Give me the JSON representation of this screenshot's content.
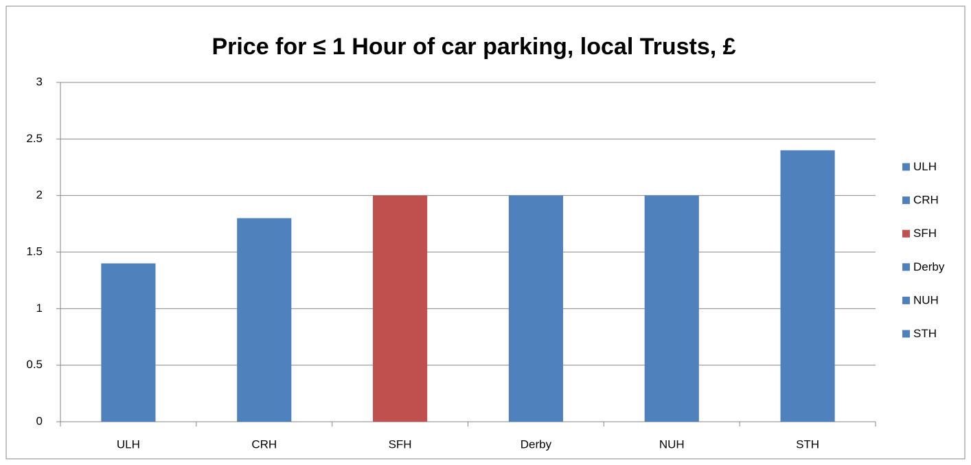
{
  "chart_data": {
    "type": "bar",
    "title": "Price for ≤ 1 Hour of car parking, local Trusts, £",
    "categories": [
      "ULH",
      "CRH",
      "SFH",
      "Derby",
      "NUH",
      "STH"
    ],
    "values": [
      1.4,
      1.8,
      2,
      2,
      2,
      2.4
    ],
    "colors": [
      "#4f81bd",
      "#4f81bd",
      "#c0504d",
      "#4f81bd",
      "#4f81bd",
      "#4f81bd"
    ],
    "ylim": [
      0,
      3
    ],
    "yticks": [
      0,
      0.5,
      1,
      1.5,
      2,
      2.5,
      3
    ],
    "grid": true,
    "legend": "right"
  }
}
